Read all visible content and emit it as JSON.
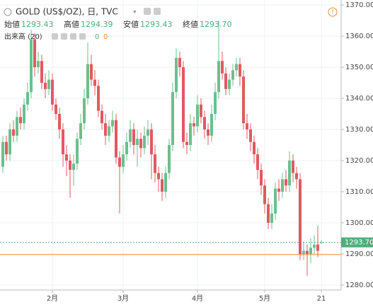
{
  "header": {
    "symbol": "GOLD (US$/OZ), 日, TVC",
    "ohlc": [
      {
        "label": "始値",
        "value": "1293.43"
      },
      {
        "label": "高値",
        "value": "1294.39"
      },
      {
        "label": "安値",
        "value": "1293.43"
      },
      {
        "label": "終値",
        "value": "1293.70"
      }
    ],
    "volume": {
      "label": "出来高 (20)",
      "values": [
        "0",
        "0"
      ]
    }
  },
  "chart_data": {
    "type": "candlestick",
    "categories": [
      null,
      null,
      null,
      null,
      null,
      null,
      null,
      null,
      null,
      null,
      null,
      null,
      null,
      null,
      "2月",
      null,
      null,
      null,
      null,
      null,
      null,
      null,
      null,
      null,
      null,
      null,
      null,
      null,
      null,
      null,
      null,
      null,
      null,
      null,
      "3月",
      null,
      null,
      null,
      null,
      null,
      null,
      null,
      null,
      null,
      null,
      null,
      null,
      null,
      null,
      null,
      null,
      null,
      null,
      null,
      null,
      "4月",
      null,
      null,
      null,
      null,
      null,
      null,
      null,
      null,
      null,
      null,
      null,
      null,
      null,
      null,
      null,
      null,
      null,
      null,
      "5月",
      null,
      null,
      null,
      null,
      null,
      null,
      null,
      null,
      null,
      null,
      null,
      null,
      null,
      null,
      null,
      "21"
    ],
    "open": [
      1318,
      1326,
      1322,
      1330,
      1328,
      1334,
      1332,
      1338,
      1342,
      1359,
      1350,
      1352,
      1345,
      1343,
      1346,
      1338,
      1335,
      1330,
      1322,
      1320,
      1317,
      1319,
      1327,
      1332,
      1340,
      1351,
      1346,
      1344,
      1336,
      1332,
      1328,
      1331,
      1333,
      1321,
      1318,
      1322,
      1326,
      1330,
      1325,
      1327,
      1324,
      1328,
      1330,
      1322,
      1316,
      1314,
      1310,
      1316,
      1325,
      1342,
      1353,
      1350,
      1326,
      1325,
      1332,
      1331,
      1338,
      1334,
      1330,
      1328,
      1335,
      1342,
      1352,
      1348,
      1343,
      1346,
      1349,
      1351,
      1347,
      1332,
      1330,
      1326,
      1322,
      1317,
      1312,
      1306,
      1300,
      1303,
      1311,
      1310,
      1314,
      1312,
      1320,
      1316,
      1314,
      1290,
      1291,
      1290,
      1292,
      1293,
      1293.43
    ],
    "high": [
      1328,
      1328,
      1332,
      1333,
      1336,
      1337,
      1340,
      1345,
      1362,
      1361,
      1355,
      1354,
      1348,
      1349,
      1348,
      1340,
      1337,
      1332,
      1325,
      1322,
      1322,
      1329,
      1335,
      1343,
      1358,
      1354,
      1349,
      1346,
      1338,
      1335,
      1333,
      1336,
      1335,
      1323,
      1325,
      1329,
      1333,
      1332,
      1330,
      1329,
      1331,
      1333,
      1332,
      1325,
      1318,
      1316,
      1318,
      1327,
      1345,
      1356,
      1355,
      1352,
      1329,
      1335,
      1334,
      1341,
      1340,
      1336,
      1332,
      1338,
      1345,
      1365,
      1355,
      1350,
      1348,
      1351,
      1353,
      1353,
      1349,
      1335,
      1332,
      1328,
      1324,
      1319,
      1314,
      1308,
      1306,
      1313,
      1314,
      1316,
      1317,
      1323,
      1322,
      1318,
      1316,
      1294,
      1293,
      1295,
      1296,
      1299,
      1294.39
    ],
    "low": [
      1316,
      1320,
      1320,
      1326,
      1326,
      1330,
      1330,
      1336,
      1340,
      1347,
      1348,
      1343,
      1340,
      1341,
      1336,
      1333,
      1327,
      1318,
      1315,
      1308,
      1312,
      1317,
      1325,
      1330,
      1338,
      1344,
      1341,
      1334,
      1330,
      1325,
      1326,
      1329,
      1319,
      1303,
      1316,
      1320,
      1324,
      1322,
      1318,
      1321,
      1322,
      1325,
      1314,
      1313,
      1310,
      1307,
      1308,
      1314,
      1323,
      1340,
      1347,
      1324,
      1322,
      1323,
      1328,
      1329,
      1332,
      1327,
      1325,
      1326,
      1333,
      1340,
      1346,
      1341,
      1341,
      1344,
      1347,
      1344,
      1330,
      1327,
      1323,
      1319,
      1314,
      1309,
      1303,
      1298,
      1298,
      1301,
      1307,
      1308,
      1310,
      1310,
      1313,
      1311,
      1288,
      1288,
      1283,
      1287,
      1290,
      1289,
      1293.43
    ],
    "close": [
      1326,
      1322,
      1330,
      1328,
      1334,
      1332,
      1338,
      1342,
      1359,
      1350,
      1352,
      1345,
      1343,
      1346,
      1338,
      1335,
      1330,
      1322,
      1320,
      1317,
      1319,
      1327,
      1332,
      1340,
      1351,
      1346,
      1344,
      1336,
      1332,
      1328,
      1331,
      1333,
      1321,
      1318,
      1322,
      1326,
      1330,
      1325,
      1327,
      1324,
      1328,
      1330,
      1322,
      1316,
      1314,
      1310,
      1316,
      1325,
      1342,
      1353,
      1350,
      1326,
      1325,
      1332,
      1331,
      1338,
      1334,
      1330,
      1328,
      1335,
      1342,
      1352,
      1348,
      1343,
      1346,
      1349,
      1351,
      1347,
      1332,
      1330,
      1326,
      1322,
      1317,
      1312,
      1306,
      1300,
      1303,
      1311,
      1310,
      1314,
      1312,
      1320,
      1316,
      1314,
      1290,
      1291,
      1290,
      1292,
      1293,
      1291,
      1293.7
    ],
    "up_color": "#6cbf8e",
    "down_color": "#e05a62",
    "last_price": {
      "value": 1293.7,
      "label": "1293.70",
      "color": "#4caf7d"
    },
    "hlines": [
      {
        "value": 1289.8,
        "color": "#f08c3a"
      }
    ],
    "ylim": [
      1278.4,
      1371.6
    ],
    "yticks": [
      {
        "value": 1280,
        "label": "1280.00"
      },
      {
        "value": 1290,
        "label": "1290.00"
      },
      {
        "value": 1300,
        "label": "1300.00"
      },
      {
        "value": 1310,
        "label": "1310.00"
      },
      {
        "value": 1320,
        "label": "1320.00"
      },
      {
        "value": 1330,
        "label": "1330.00"
      },
      {
        "value": 1340,
        "label": "1340.00"
      },
      {
        "value": 1350,
        "label": "1350.00"
      },
      {
        "value": 1360,
        "label": "1360.00"
      },
      {
        "value": 1370,
        "label": "1370.00"
      }
    ],
    "grid": true
  }
}
